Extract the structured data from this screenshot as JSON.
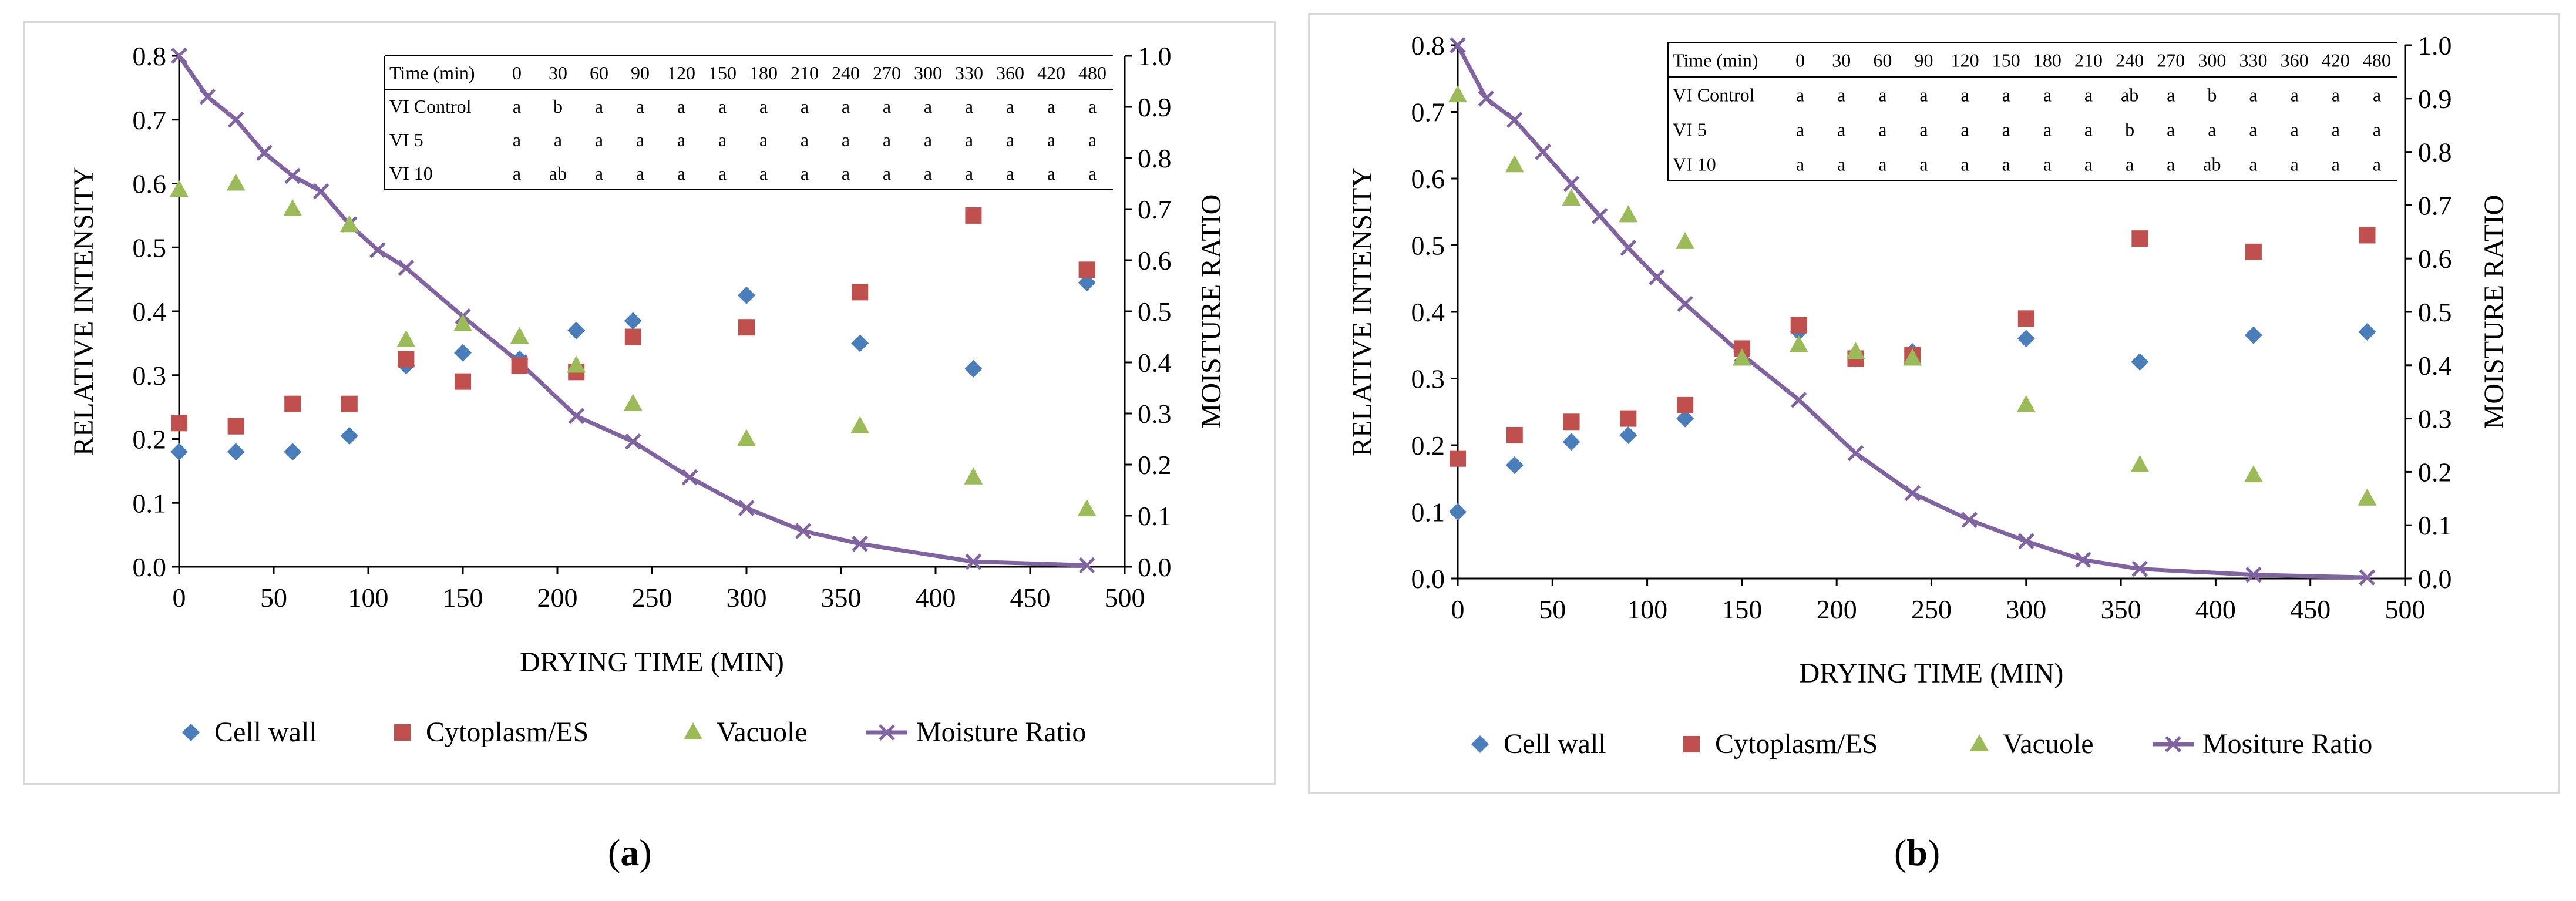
{
  "figure": {
    "panel_a_label": "a",
    "panel_b_label": "b"
  },
  "colors": {
    "cell_wall": "#4a7ebb",
    "cytoplasm": "#c0504d",
    "vacuole": "#9bbb59",
    "moisture": "#8064a2",
    "axis": "#000000",
    "frame": "#d9d9d9"
  },
  "chart_data": [
    {
      "type": "scatter",
      "panel": "a",
      "xlabel": "DRYING TIME (MIN)",
      "ylabel": "RELATIVE INTENSITY",
      "y2label": "MOISTURE RATIO",
      "xlim": [
        0,
        500
      ],
      "ylim": [
        0,
        0.8
      ],
      "y2lim": [
        0,
        1.0
      ],
      "xticks": [
        "0",
        "50",
        "100",
        "150",
        "200",
        "250",
        "300",
        "350",
        "400",
        "450",
        "500"
      ],
      "yticks": [
        "0.0",
        "0.1",
        "0.2",
        "0.3",
        "0.4",
        "0.5",
        "0.6",
        "0.7",
        "0.8"
      ],
      "y2ticks": [
        "0.0",
        "0.1",
        "0.2",
        "0.3",
        "0.4",
        "0.5",
        "0.6",
        "0.7",
        "0.8",
        "0.9",
        "1.0"
      ],
      "x": [
        0,
        30,
        60,
        90,
        120,
        150,
        180,
        210,
        240,
        300,
        360,
        420,
        480
      ],
      "series": [
        {
          "name": "Cell wall",
          "marker": "diamond",
          "axis": "left",
          "values": [
            0.18,
            0.18,
            0.18,
            0.205,
            0.315,
            0.335,
            0.325,
            0.37,
            0.385,
            0.425,
            0.35,
            0.31,
            0.445
          ]
        },
        {
          "name": "Cytoplasm/ES",
          "marker": "square",
          "axis": "left",
          "values": [
            0.225,
            0.22,
            0.255,
            0.255,
            0.325,
            0.29,
            0.315,
            0.305,
            0.36,
            0.375,
            0.43,
            0.55,
            0.465
          ]
        },
        {
          "name": "Vacuole",
          "marker": "triangle",
          "axis": "left",
          "values": [
            0.59,
            0.6,
            0.56,
            0.535,
            0.355,
            0.38,
            0.36,
            0.315,
            0.255,
            0.2,
            0.22,
            0.14,
            0.09
          ]
        }
      ],
      "moisture": {
        "name": "Moisture Ratio",
        "axis": "right",
        "x": [
          0,
          15,
          30,
          45,
          60,
          75,
          90,
          105,
          120,
          150,
          180,
          210,
          240,
          270,
          300,
          330,
          360,
          420,
          480
        ],
        "values": [
          1.0,
          0.92,
          0.875,
          0.81,
          0.765,
          0.735,
          0.67,
          0.62,
          0.585,
          0.49,
          0.4,
          0.295,
          0.245,
          0.175,
          0.115,
          0.07,
          0.045,
          0.01,
          0.003
        ]
      },
      "table": {
        "header_label": "Time (min)",
        "times": [
          "0",
          "30",
          "60",
          "90",
          "120",
          "150",
          "180",
          "210",
          "240",
          "270",
          "300",
          "330",
          "360",
          "420",
          "480"
        ],
        "rows": [
          {
            "label": "VI Control",
            "cells": [
              "a",
              "b",
              "a",
              "a",
              "a",
              "a",
              "a",
              "a",
              "a",
              "a",
              "a",
              "a",
              "a",
              "a",
              "a"
            ]
          },
          {
            "label": "VI 5",
            "cells": [
              "a",
              "a",
              "a",
              "a",
              "a",
              "a",
              "a",
              "a",
              "a",
              "a",
              "a",
              "a",
              "a",
              "a",
              "a"
            ]
          },
          {
            "label": "VI 10",
            "cells": [
              "a",
              "ab",
              "a",
              "a",
              "a",
              "a",
              "a",
              "a",
              "a",
              "a",
              "a",
              "a",
              "a",
              "a",
              "a"
            ]
          }
        ]
      },
      "legend": [
        "Cell wall",
        "Cytoplasm/ES",
        "Vacuole",
        "Moisture Ratio"
      ]
    },
    {
      "type": "scatter",
      "panel": "b",
      "xlabel": "DRYING TIME (MIN)",
      "ylabel": "RELATIVE INTENSITY",
      "y2label": "MOISTURE RATIO",
      "xlim": [
        0,
        500
      ],
      "ylim": [
        0,
        0.8
      ],
      "y2lim": [
        0,
        1.0
      ],
      "xticks": [
        "0",
        "50",
        "100",
        "150",
        "200",
        "250",
        "300",
        "350",
        "400",
        "450",
        "500"
      ],
      "yticks": [
        "0.0",
        "0.1",
        "0.2",
        "0.3",
        "0.4",
        "0.5",
        "0.6",
        "0.7",
        "0.8"
      ],
      "y2ticks": [
        "0.0",
        "0.1",
        "0.2",
        "0.3",
        "0.4",
        "0.5",
        "0.6",
        "0.7",
        "0.8",
        "0.9",
        "1.0"
      ],
      "x": [
        0,
        30,
        60,
        90,
        120,
        150,
        180,
        210,
        240,
        300,
        360,
        420,
        480
      ],
      "series": [
        {
          "name": "Cell wall",
          "marker": "diamond",
          "axis": "left",
          "values": [
            0.1,
            0.17,
            0.205,
            0.215,
            0.24,
            0.34,
            0.37,
            0.33,
            0.34,
            0.36,
            0.325,
            0.365,
            0.37
          ]
        },
        {
          "name": "Cytoplasm/ES",
          "marker": "square",
          "axis": "left",
          "values": [
            0.18,
            0.215,
            0.235,
            0.24,
            0.26,
            0.345,
            0.38,
            0.33,
            0.335,
            0.39,
            0.51,
            0.49,
            0.515
          ]
        },
        {
          "name": "Vacuole",
          "marker": "triangle",
          "axis": "left",
          "values": [
            0.725,
            0.62,
            0.57,
            0.545,
            0.505,
            0.33,
            0.35,
            0.34,
            0.33,
            0.26,
            0.17,
            0.155,
            0.12
          ]
        }
      ],
      "moisture": {
        "name": "Mositure Ratio",
        "axis": "right",
        "x": [
          0,
          15,
          30,
          45,
          60,
          75,
          90,
          105,
          120,
          150,
          180,
          210,
          240,
          270,
          300,
          330,
          360,
          420,
          480
        ],
        "values": [
          1.0,
          0.9,
          0.86,
          0.8,
          0.74,
          0.68,
          0.62,
          0.565,
          0.515,
          0.42,
          0.335,
          0.235,
          0.16,
          0.11,
          0.07,
          0.035,
          0.018,
          0.007,
          0.002
        ]
      },
      "table": {
        "header_label": "Time (min)",
        "times": [
          "0",
          "30",
          "60",
          "90",
          "120",
          "150",
          "180",
          "210",
          "240",
          "270",
          "300",
          "330",
          "360",
          "420",
          "480"
        ],
        "rows": [
          {
            "label": "VI Control",
            "cells": [
              "a",
              "a",
              "a",
              "a",
              "a",
              "a",
              "a",
              "a",
              "ab",
              "a",
              "b",
              "a",
              "a",
              "a",
              "a"
            ]
          },
          {
            "label": "VI 5",
            "cells": [
              "a",
              "a",
              "a",
              "a",
              "a",
              "a",
              "a",
              "a",
              "b",
              "a",
              "a",
              "a",
              "a",
              "a",
              "a"
            ]
          },
          {
            "label": "VI 10",
            "cells": [
              "a",
              "a",
              "a",
              "a",
              "a",
              "a",
              "a",
              "a",
              "a",
              "a",
              "ab",
              "a",
              "a",
              "a",
              "a"
            ]
          }
        ]
      },
      "legend": [
        "Cell wall",
        "Cytoplasm/ES",
        "Vacuole",
        "Mositure Ratio"
      ]
    }
  ]
}
